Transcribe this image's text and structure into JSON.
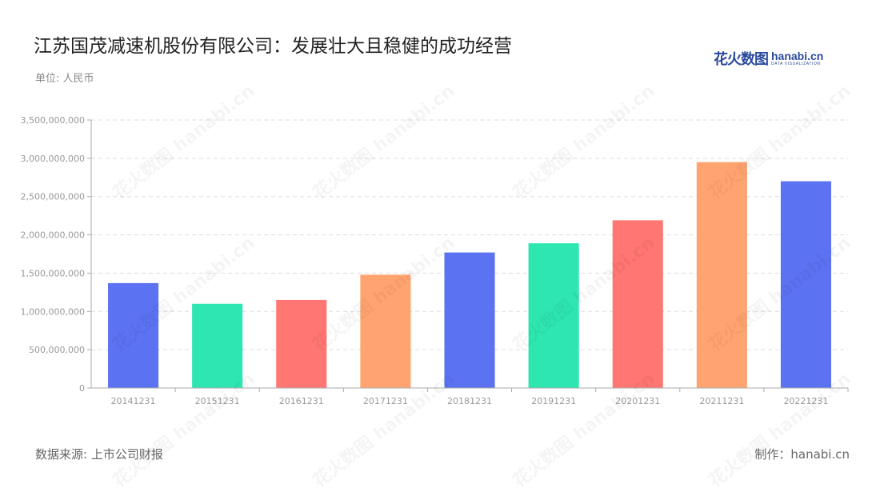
{
  "header": {
    "title": "江苏国茂减速机股份有限公司：发展壮大且稳健的成功经营",
    "unit": "单位: 人民币"
  },
  "logo": {
    "cn": "花火数图",
    "en": "hanabi.cn",
    "sub": "DATA VISUALIZATION"
  },
  "footer": {
    "source": "数据来源: 上市公司财报",
    "credit": "制作：hanabi.cn"
  },
  "colors": {
    "palette": [
      "#5b72f2",
      "#2ee6b0",
      "#ff7672",
      "#ffa470"
    ],
    "grid": "#dddddd",
    "axis": "#aaaaaa",
    "tick_text": "#999999"
  },
  "chart_data": {
    "type": "bar",
    "categories": [
      "20141231",
      "20151231",
      "20161231",
      "20171231",
      "20181231",
      "20191231",
      "20201231",
      "20211231",
      "20221231"
    ],
    "values": [
      1370000000,
      1100000000,
      1150000000,
      1480000000,
      1770000000,
      1890000000,
      2190000000,
      2950000000,
      2700000000
    ],
    "ylim": [
      0,
      3500000000
    ],
    "yticks": [
      "0",
      "500,000,000",
      "1,000,000,000",
      "1,500,000,000",
      "2,000,000,000",
      "2,500,000,000",
      "3,000,000,000",
      "3,500,000,000"
    ],
    "grid": true,
    "legend": false
  }
}
